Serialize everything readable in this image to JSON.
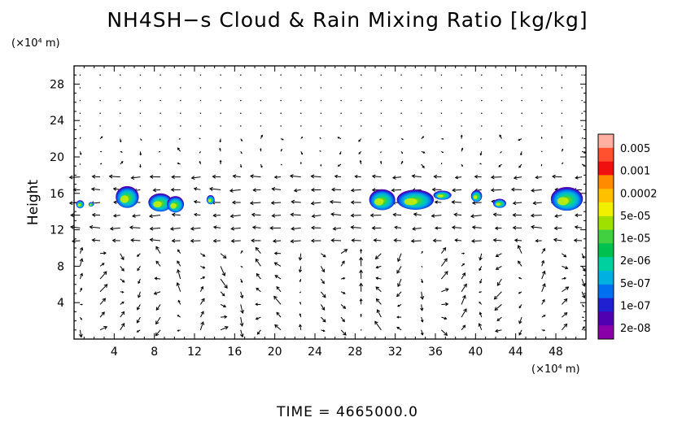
{
  "chart_data": {
    "type": "heatmap",
    "title": "NH4SH−s Cloud & Rain Mixing Ratio [kg/kg]",
    "ylabel": "Height",
    "y_unit": "(×10⁴ m)",
    "x_unit": "(×10⁴ m)",
    "xlim": [
      0,
      51
    ],
    "ylim": [
      0,
      30
    ],
    "x_ticks": [
      4,
      8,
      12,
      16,
      20,
      24,
      28,
      32,
      36,
      40,
      44,
      48
    ],
    "y_ticks": [
      4,
      8,
      12,
      16,
      20,
      24,
      28
    ],
    "colorbar": {
      "labels": [
        "0.005",
        "0.001",
        "0.0002",
        "5e-05",
        "1e-05",
        "2e-06",
        "5e-07",
        "1e-07",
        "2e-08"
      ],
      "colors": [
        "#ffb0a0",
        "#ff5030",
        "#f01010",
        "#ff8c00",
        "#ffc000",
        "#f0f000",
        "#a0e000",
        "#40d040",
        "#00c050",
        "#00d0a0",
        "#00b0e0",
        "#0070f0",
        "#2020d0",
        "#5000b0",
        "#8a00a8"
      ]
    },
    "clouds": [
      {
        "x": 0.6,
        "y": 14.8,
        "w": 0.8,
        "h": 0.9
      },
      {
        "x": 1.7,
        "y": 14.8,
        "w": 0.5,
        "h": 0.5
      },
      {
        "x": 5.3,
        "y": 15.6,
        "w": 2.3,
        "h": 2.4
      },
      {
        "x": 8.6,
        "y": 15.0,
        "w": 2.4,
        "h": 2.0
      },
      {
        "x": 10.1,
        "y": 14.8,
        "w": 1.7,
        "h": 1.8
      },
      {
        "x": 13.6,
        "y": 15.3,
        "w": 0.8,
        "h": 1.0
      },
      {
        "x": 30.7,
        "y": 15.3,
        "w": 2.6,
        "h": 2.3
      },
      {
        "x": 34.0,
        "y": 15.3,
        "w": 3.7,
        "h": 2.2
      },
      {
        "x": 36.7,
        "y": 15.8,
        "w": 1.8,
        "h": 1.0
      },
      {
        "x": 40.1,
        "y": 15.7,
        "w": 1.1,
        "h": 1.3
      },
      {
        "x": 42.4,
        "y": 14.9,
        "w": 1.3,
        "h": 1.0
      },
      {
        "x": 49.1,
        "y": 15.4,
        "w": 3.2,
        "h": 2.6
      }
    ],
    "time_label": "TIME = 4665000.0"
  }
}
